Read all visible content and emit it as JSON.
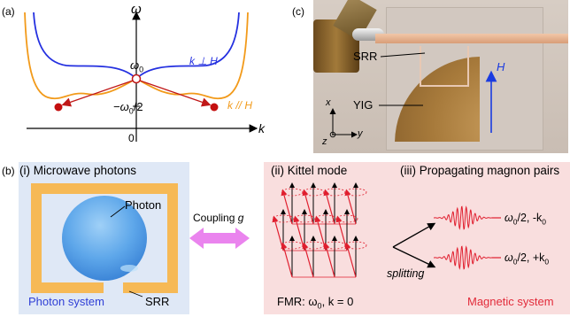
{
  "panel_a": {
    "letter": "(a)",
    "y_axis": "ω",
    "x_axis": "k",
    "origin": "0",
    "omega0": "ω0",
    "omega0_main": "ω",
    "omega0_sub": "0",
    "half_omega0_pre": "−ω",
    "half_omega0_sub": "0",
    "half_omega0_post": "/2",
    "k_perp_label": "k ⊥ H",
    "k_par_label": "k // H",
    "colors": {
      "perp": "#2430e0",
      "par": "#f29a1a",
      "arrow": "#c01818",
      "dot": "#c40f0f"
    }
  },
  "panel_c": {
    "letter": "(c)",
    "srr_label": "SRR",
    "yig_label": "YIG",
    "field_label": "H",
    "axis_x": "x",
    "axis_y": "y",
    "axis_z": "z"
  },
  "panel_b": {
    "letter": "(b)",
    "i_title": "(i) Microwave photons",
    "photon_label": "Photon",
    "srr_label": "SRR",
    "photon_system": "Photon system",
    "coupling_label": "Coupling ",
    "coupling_symbol": "g",
    "ii_title": "(ii) Kittel mode",
    "fmr_pre": "FMR: ω",
    "fmr_sub": "0",
    "fmr_post": ", k = 0",
    "iii_title": "(iii) Propagating magnon pairs",
    "splitting": "splitting",
    "pair_upper_pre": "ω",
    "pair_upper_sub": "0",
    "pair_upper_post": "/2, -k",
    "pair_upper_ksub": "0",
    "pair_lower_pre": "ω",
    "pair_lower_sub": "0",
    "pair_lower_post": "/2, +k",
    "pair_lower_ksub": "0",
    "magnetic_system": "Magnetic system",
    "colors": {
      "ring": "#f6b956",
      "photon_blue": "#2f3fd6",
      "magnetic_red": "#e22b3a"
    }
  }
}
